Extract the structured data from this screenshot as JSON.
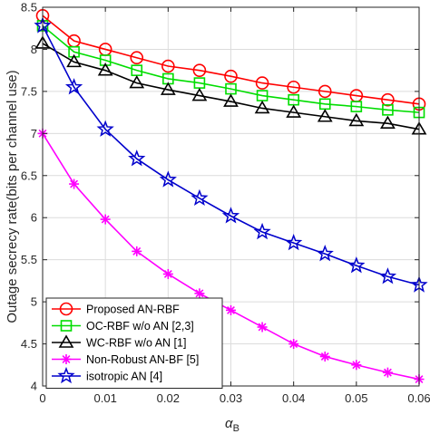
{
  "chart_data": {
    "type": "line",
    "xlabel": "α",
    "xlabel_sub": "B",
    "ylabel": "Outage secrecy rate(bits per channel use)",
    "xlim": [
      0,
      0.06
    ],
    "ylim": [
      4,
      8.5
    ],
    "xticks": [
      "0",
      "0.01",
      "0.02",
      "0.03",
      "0.04",
      "0.05",
      "0.06"
    ],
    "yticks": [
      "4",
      "4.5",
      "5",
      "5.5",
      "6",
      "6.5",
      "7",
      "7.5",
      "8",
      "8.5"
    ],
    "grid": true,
    "legend_position": "bottom-left",
    "x": [
      0,
      0.005,
      0.01,
      0.015,
      0.02,
      0.025,
      0.03,
      0.035,
      0.04,
      0.045,
      0.05,
      0.055,
      0.06
    ],
    "series": [
      {
        "name": "Proposed AN-RBF",
        "color": "#ff0000",
        "marker": "circle",
        "values": [
          8.4,
          8.1,
          8.0,
          7.9,
          7.8,
          7.75,
          7.68,
          7.6,
          7.55,
          7.5,
          7.45,
          7.4,
          7.35
        ]
      },
      {
        "name": "OC-RBF w/o AN [2,3]",
        "color": "#00dd00",
        "marker": "square",
        "values": [
          8.28,
          7.97,
          7.87,
          7.75,
          7.65,
          7.6,
          7.53,
          7.45,
          7.4,
          7.35,
          7.32,
          7.28,
          7.25
        ]
      },
      {
        "name": "WC-RBF w/o AN [1]",
        "color": "#000000",
        "marker": "triangle",
        "values": [
          8.07,
          7.85,
          7.75,
          7.6,
          7.52,
          7.45,
          7.38,
          7.3,
          7.25,
          7.2,
          7.15,
          7.12,
          7.05
        ]
      },
      {
        "name": "Non-Robust AN-BF [5]",
        "color": "#ff00ff",
        "marker": "asterisk",
        "values": [
          7.0,
          6.4,
          5.98,
          5.6,
          5.33,
          5.1,
          4.9,
          4.7,
          4.5,
          4.35,
          4.25,
          4.16,
          4.08
        ]
      },
      {
        "name": "isotropic AN [4]",
        "color": "#0000cc",
        "marker": "star",
        "values": [
          8.28,
          7.55,
          7.05,
          6.7,
          6.45,
          6.23,
          6.02,
          5.83,
          5.7,
          5.57,
          5.43,
          5.3,
          5.2
        ]
      }
    ]
  }
}
